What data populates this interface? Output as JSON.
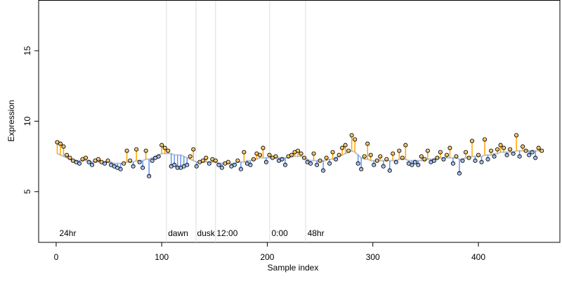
{
  "chart_data": {
    "type": "scatter",
    "xlabel": "Sample index",
    "ylabel": "Expression",
    "xlim": [
      -16.6,
      477.2
    ],
    "ylim": [
      1.4,
      18.6
    ],
    "xticks": [
      0,
      100,
      200,
      300,
      400
    ],
    "yticks": [
      5,
      10,
      15
    ],
    "above_color": "#FFA500",
    "below_color": "#6495ED",
    "trend_color": "#b8c4d6",
    "vlines": [
      104.5,
      132.5,
      151,
      202.3,
      236.3
    ],
    "annotations": [
      {
        "label": "24hr",
        "x": 3,
        "y": 2.0
      },
      {
        "label": "dawn",
        "x": 106,
        "y": 2.0
      },
      {
        "label": "dusk",
        "x": 133.5,
        "y": 2.0
      },
      {
        "label": "12:00",
        "x": 152,
        "y": 2.0
      },
      {
        "label": "0:00",
        "x": 204,
        "y": 2.0
      },
      {
        "label": "48hr",
        "x": 238,
        "y": 2.0
      }
    ],
    "x": [
      1,
      4,
      7,
      10,
      13,
      16,
      19,
      22,
      25,
      28,
      31,
      34,
      37,
      40,
      43,
      46,
      49,
      52,
      55,
      58,
      61,
      64,
      67,
      70,
      73,
      76,
      79,
      82,
      85,
      88,
      91,
      94,
      97,
      100,
      103,
      106,
      109,
      112,
      115,
      118,
      121,
      124,
      127,
      130,
      133,
      136,
      139,
      142,
      145,
      148,
      151,
      154,
      157,
      160,
      163,
      166,
      169,
      172,
      175,
      178,
      181,
      184,
      187,
      190,
      193,
      196,
      199,
      202,
      205,
      208,
      211,
      214,
      217,
      220,
      223,
      226,
      229,
      232,
      235,
      238,
      241,
      244,
      247,
      250,
      253,
      256,
      259,
      262,
      265,
      268,
      271,
      274,
      277,
      280,
      283,
      286,
      289,
      292,
      295,
      298,
      301,
      304,
      307,
      310,
      313,
      316,
      319,
      322,
      325,
      328,
      331,
      334,
      337,
      340,
      343,
      346,
      349,
      352,
      355,
      358,
      361,
      364,
      367,
      370,
      373,
      376,
      379,
      382,
      385,
      388,
      391,
      394,
      397,
      400,
      403,
      406,
      409,
      412,
      415,
      418,
      421,
      424,
      427,
      430,
      433,
      436,
      439,
      442,
      445,
      448,
      451,
      454,
      457,
      460
    ],
    "values": [
      8.5,
      8.4,
      8.2,
      7.6,
      7.4,
      7.2,
      7.1,
      7.0,
      7.3,
      7.4,
      7.1,
      6.9,
      7.2,
      7.3,
      7.1,
      7.0,
      7.2,
      6.9,
      6.8,
      6.7,
      6.6,
      7.0,
      7.9,
      7.2,
      6.8,
      8.0,
      7.1,
      6.7,
      7.9,
      6.1,
      7.2,
      7.4,
      7.5,
      8.3,
      8.1,
      7.9,
      6.8,
      6.9,
      6.7,
      6.7,
      6.8,
      6.9,
      7.5,
      8.0,
      6.8,
      7.1,
      7.2,
      7.4,
      7.0,
      7.3,
      7.2,
      6.9,
      6.7,
      7.0,
      7.1,
      6.8,
      6.9,
      7.2,
      6.6,
      7.8,
      7.0,
      6.9,
      7.3,
      7.7,
      7.6,
      8.1,
      7.1,
      7.6,
      7.4,
      7.5,
      7.2,
      7.3,
      6.9,
      7.5,
      7.6,
      7.8,
      7.9,
      7.7,
      7.4,
      7.1,
      7.0,
      7.7,
      6.9,
      7.2,
      6.5,
      7.4,
      7.0,
      7.8,
      7.3,
      7.6,
      8.1,
      8.3,
      7.9,
      9.0,
      8.7,
      7.0,
      6.6,
      7.5,
      8.4,
      7.6,
      6.9,
      7.2,
      7.5,
      6.8,
      7.3,
      6.5,
      7.7,
      7.1,
      7.9,
      7.4,
      8.3,
      7.0,
      6.9,
      7.1,
      6.9,
      7.5,
      7.3,
      7.9,
      7.1,
      7.2,
      7.4,
      7.8,
      7.3,
      7.6,
      8.1,
      7.0,
      7.5,
      6.3,
      7.2,
      7.8,
      7.4,
      8.6,
      7.2,
      7.6,
      7.1,
      8.7,
      7.3,
      7.9,
      7.5,
      8.0,
      8.3,
      8.1,
      7.6,
      8.0,
      7.7,
      9.0,
      7.5,
      8.2,
      7.9,
      7.6,
      7.8,
      7.4,
      8.1,
      7.9
    ],
    "trend": [
      7.7,
      7.6,
      7.5,
      7.4,
      7.3,
      7.2,
      7.2,
      7.2,
      7.2,
      7.2,
      7.2,
      7.1,
      7.1,
      7.1,
      7.1,
      7.1,
      7.1,
      7.1,
      7.0,
      7.0,
      7.0,
      7.0,
      7.1,
      7.1,
      7.1,
      7.2,
      7.2,
      7.2,
      7.3,
      7.3,
      7.4,
      7.5,
      7.6,
      7.7,
      7.7,
      7.7,
      7.7,
      7.6,
      7.6,
      7.6,
      7.5,
      7.4,
      7.3,
      7.2,
      7.1,
      7.1,
      7.1,
      7.1,
      7.1,
      7.1,
      7.1,
      7.0,
      7.0,
      7.0,
      7.0,
      7.0,
      7.0,
      7.1,
      7.1,
      7.1,
      7.2,
      7.2,
      7.3,
      7.3,
      7.4,
      7.4,
      7.4,
      7.4,
      7.4,
      7.4,
      7.4,
      7.4,
      7.4,
      7.4,
      7.5,
      7.5,
      7.5,
      7.5,
      7.4,
      7.3,
      7.2,
      7.2,
      7.2,
      7.2,
      7.2,
      7.2,
      7.3,
      7.3,
      7.4,
      7.5,
      7.6,
      7.7,
      7.8,
      7.9,
      7.8,
      7.6,
      7.4,
      7.3,
      7.3,
      7.2,
      7.2,
      7.2,
      7.2,
      7.2,
      7.2,
      7.2,
      7.2,
      7.2,
      7.3,
      7.3,
      7.3,
      7.2,
      7.2,
      7.2,
      7.2,
      7.2,
      7.2,
      7.3,
      7.3,
      7.3,
      7.4,
      7.4,
      7.4,
      7.4,
      7.4,
      7.4,
      7.4,
      7.3,
      7.3,
      7.4,
      7.4,
      7.5,
      7.5,
      7.5,
      7.5,
      7.6,
      7.6,
      7.6,
      7.7,
      7.7,
      7.8,
      7.8,
      7.8,
      7.8,
      7.8,
      7.9,
      7.9,
      7.9,
      7.9,
      7.9,
      7.9,
      7.9,
      7.9,
      7.9
    ]
  }
}
